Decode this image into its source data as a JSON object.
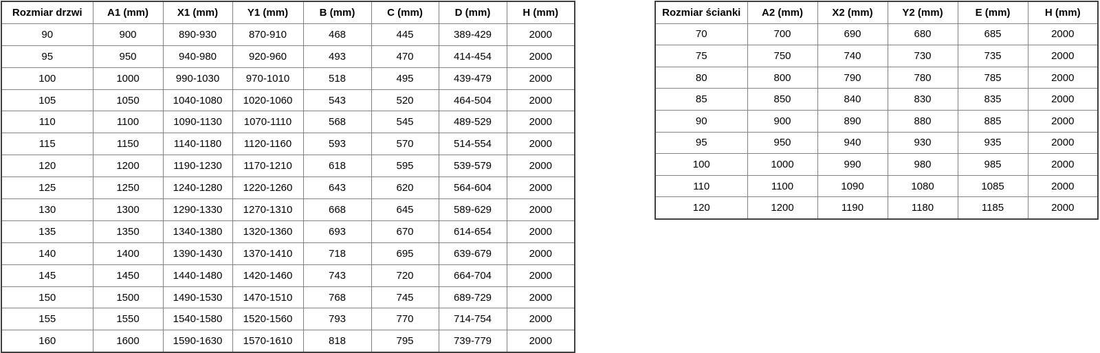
{
  "colors": {
    "background": "#ffffff",
    "text": "#000000",
    "border_inner": "#808080",
    "border_outer": "#3f3f3f"
  },
  "tables": {
    "doors": {
      "title": "Rozmiar drzwi",
      "headers": [
        "Rozmiar drzwi",
        "A1 (mm)",
        "X1 (mm)",
        "Y1 (mm)",
        "B (mm)",
        "C (mm)",
        "D (mm)",
        "H (mm)"
      ],
      "rows": [
        [
          "90",
          "900",
          "890-930",
          "870-910",
          "468",
          "445",
          "389-429",
          "2000"
        ],
        [
          "95",
          "950",
          "940-980",
          "920-960",
          "493",
          "470",
          "414-454",
          "2000"
        ],
        [
          "100",
          "1000",
          "990-1030",
          "970-1010",
          "518",
          "495",
          "439-479",
          "2000"
        ],
        [
          "105",
          "1050",
          "1040-1080",
          "1020-1060",
          "543",
          "520",
          "464-504",
          "2000"
        ],
        [
          "110",
          "1100",
          "1090-1130",
          "1070-1110",
          "568",
          "545",
          "489-529",
          "2000"
        ],
        [
          "115",
          "1150",
          "1140-1180",
          "1120-1160",
          "593",
          "570",
          "514-554",
          "2000"
        ],
        [
          "120",
          "1200",
          "1190-1230",
          "1170-1210",
          "618",
          "595",
          "539-579",
          "2000"
        ],
        [
          "125",
          "1250",
          "1240-1280",
          "1220-1260",
          "643",
          "620",
          "564-604",
          "2000"
        ],
        [
          "130",
          "1300",
          "1290-1330",
          "1270-1310",
          "668",
          "645",
          "589-629",
          "2000"
        ],
        [
          "135",
          "1350",
          "1340-1380",
          "1320-1360",
          "693",
          "670",
          "614-654",
          "2000"
        ],
        [
          "140",
          "1400",
          "1390-1430",
          "1370-1410",
          "718",
          "695",
          "639-679",
          "2000"
        ],
        [
          "145",
          "1450",
          "1440-1480",
          "1420-1460",
          "743",
          "720",
          "664-704",
          "2000"
        ],
        [
          "150",
          "1500",
          "1490-1530",
          "1470-1510",
          "768",
          "745",
          "689-729",
          "2000"
        ],
        [
          "155",
          "1550",
          "1540-1580",
          "1520-1560",
          "793",
          "770",
          "714-754",
          "2000"
        ],
        [
          "160",
          "1600",
          "1590-1630",
          "1570-1610",
          "818",
          "795",
          "739-779",
          "2000"
        ]
      ]
    },
    "walls": {
      "title": "Rozmiar ścianki",
      "headers": [
        "Rozmiar ścianki",
        "A2 (mm)",
        "X2 (mm)",
        "Y2 (mm)",
        "E (mm)",
        "H (mm)"
      ],
      "rows": [
        [
          "70",
          "700",
          "690",
          "680",
          "685",
          "2000"
        ],
        [
          "75",
          "750",
          "740",
          "730",
          "735",
          "2000"
        ],
        [
          "80",
          "800",
          "790",
          "780",
          "785",
          "2000"
        ],
        [
          "85",
          "850",
          "840",
          "830",
          "835",
          "2000"
        ],
        [
          "90",
          "900",
          "890",
          "880",
          "885",
          "2000"
        ],
        [
          "95",
          "950",
          "940",
          "930",
          "935",
          "2000"
        ],
        [
          "100",
          "1000",
          "990",
          "980",
          "985",
          "2000"
        ],
        [
          "110",
          "1100",
          "1090",
          "1080",
          "1085",
          "2000"
        ],
        [
          "120",
          "1200",
          "1190",
          "1180",
          "1185",
          "2000"
        ]
      ]
    }
  }
}
